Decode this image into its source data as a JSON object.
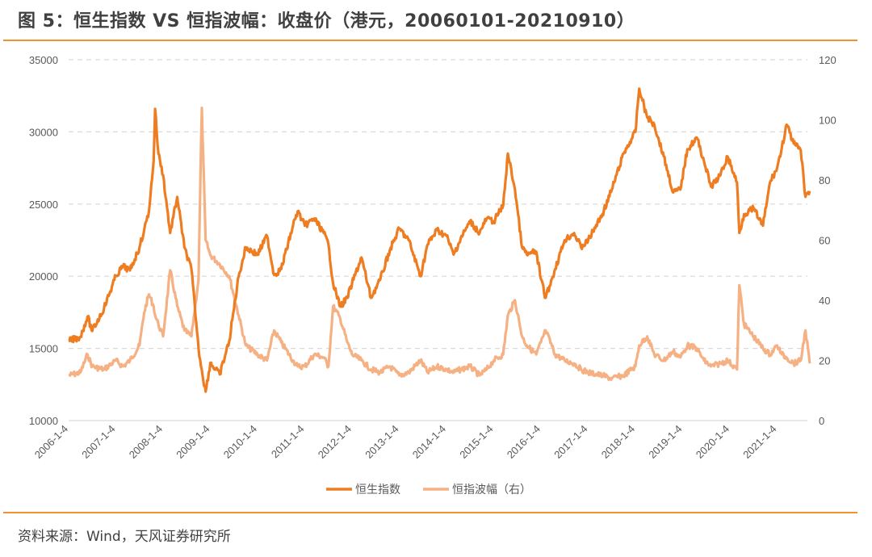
{
  "header": {
    "title": "图 5：恒生指数 VS 恒指波幅：收盘价（港元，20060101-20210910）"
  },
  "footer": {
    "source": "资料来源：Wind，天风证券研究所"
  },
  "colors": {
    "accent_rule": "#f0922e",
    "hsi_line": "#ee7d22",
    "vhsi_line": "#f5b183",
    "grid": "#d9d9d9",
    "text": "#404040"
  },
  "chart_data": {
    "type": "line",
    "title": "恒生指数 VS 恒指波幅：收盘价（港元，20060101-20210910）",
    "xlabel": "",
    "ylabel": "",
    "y_left": {
      "min": 10000,
      "max": 35000,
      "ticks": [
        10000,
        15000,
        20000,
        25000,
        30000,
        35000
      ]
    },
    "y_right": {
      "min": 0,
      "max": 120,
      "ticks": [
        0,
        20,
        40,
        60,
        80,
        100,
        120
      ]
    },
    "x_tick_labels": [
      "2006-1-4",
      "2007-1-4",
      "2008-1-4",
      "2009-1-4",
      "2010-1-4",
      "2011-1-4",
      "2012-1-4",
      "2013-1-4",
      "2014-1-4",
      "2015-1-4",
      "2016-1-4",
      "2017-1-4",
      "2018-1-4",
      "2019-1-4",
      "2020-1-4",
      "2021-1-4"
    ],
    "grid": "horizontal dashed",
    "legend_position": "bottom",
    "x": [
      2006.0,
      2006.25,
      2006.4,
      2006.5,
      2006.75,
      2007.0,
      2007.15,
      2007.3,
      2007.5,
      2007.6,
      2007.7,
      2007.8,
      2007.83,
      2007.9,
      2008.0,
      2008.15,
      2008.3,
      2008.45,
      2008.6,
      2008.75,
      2008.82,
      2008.9,
      2009.0,
      2009.2,
      2009.4,
      2009.6,
      2009.75,
      2010.0,
      2010.2,
      2010.35,
      2010.5,
      2010.75,
      2010.85,
      2011.0,
      2011.2,
      2011.4,
      2011.5,
      2011.6,
      2011.75,
      2011.9,
      2012.0,
      2012.2,
      2012.4,
      2012.6,
      2012.8,
      2013.0,
      2013.2,
      2013.45,
      2013.6,
      2013.8,
      2014.0,
      2014.15,
      2014.3,
      2014.5,
      2014.7,
      2014.85,
      2015.0,
      2015.2,
      2015.3,
      2015.45,
      2015.6,
      2015.7,
      2015.9,
      2016.0,
      2016.1,
      2016.3,
      2016.5,
      2016.7,
      2016.85,
      2017.0,
      2017.3,
      2017.5,
      2017.75,
      2018.0,
      2018.08,
      2018.25,
      2018.4,
      2018.6,
      2018.8,
      2018.95,
      2019.1,
      2019.3,
      2019.45,
      2019.6,
      2019.8,
      2019.95,
      2020.15,
      2020.2,
      2020.3,
      2020.5,
      2020.7,
      2020.85,
      2021.0,
      2021.1,
      2021.2,
      2021.35,
      2021.5,
      2021.6,
      2021.69
    ],
    "series": [
      {
        "name": "恒生指数",
        "axis": "left",
        "values": [
          15500,
          15800,
          17200,
          16200,
          17800,
          20000,
          20700,
          20400,
          22000,
          23200,
          24500,
          28000,
          31600,
          28500,
          27000,
          23000,
          25500,
          22000,
          20500,
          15000,
          13500,
          12000,
          14000,
          13200,
          15500,
          20000,
          22000,
          21500,
          22800,
          20100,
          20500,
          23500,
          24500,
          23500,
          24000,
          23000,
          22200,
          19500,
          17900,
          18500,
          19500,
          21300,
          18500,
          19800,
          21800,
          23300,
          22500,
          20000,
          22200,
          23200,
          22800,
          21500,
          22600,
          23800,
          23000,
          24000,
          23800,
          24900,
          28500,
          26000,
          22000,
          21500,
          21700,
          19800,
          18500,
          20500,
          22500,
          23000,
          22000,
          22500,
          24300,
          26000,
          28500,
          30000,
          33000,
          31000,
          30500,
          28300,
          25800,
          26000,
          28800,
          29600,
          28000,
          26200,
          27000,
          28300,
          26500,
          23000,
          24300,
          24700,
          23500,
          26500,
          27500,
          28900,
          30500,
          29200,
          28700,
          25500,
          25900
        ]
      },
      {
        "name": "恒指波幅（右）",
        "axis": "right",
        "values": [
          15,
          16,
          22,
          18,
          17,
          20,
          18,
          20,
          25,
          36,
          42,
          38,
          35,
          32,
          28,
          50,
          38,
          30,
          28,
          47,
          104,
          60,
          55,
          52,
          48,
          35,
          25,
          22,
          20,
          30,
          26,
          20,
          18,
          18,
          22,
          21,
          18,
          38,
          34,
          26,
          22,
          20,
          17,
          16,
          18,
          15,
          16,
          20,
          16,
          18,
          17,
          16,
          17,
          18,
          15,
          17,
          20,
          22,
          35,
          40,
          28,
          25,
          22,
          26,
          30,
          22,
          20,
          19,
          17,
          16,
          15,
          14,
          15,
          18,
          25,
          28,
          22,
          20,
          23,
          21,
          25,
          24,
          20,
          18,
          19,
          20,
          17,
          45,
          32,
          28,
          24,
          22,
          25,
          22,
          21,
          19,
          20,
          30,
          19
        ]
      }
    ]
  },
  "legend": {
    "items": [
      {
        "label": "恒生指数"
      },
      {
        "label": "恒指波幅（右）"
      }
    ]
  }
}
